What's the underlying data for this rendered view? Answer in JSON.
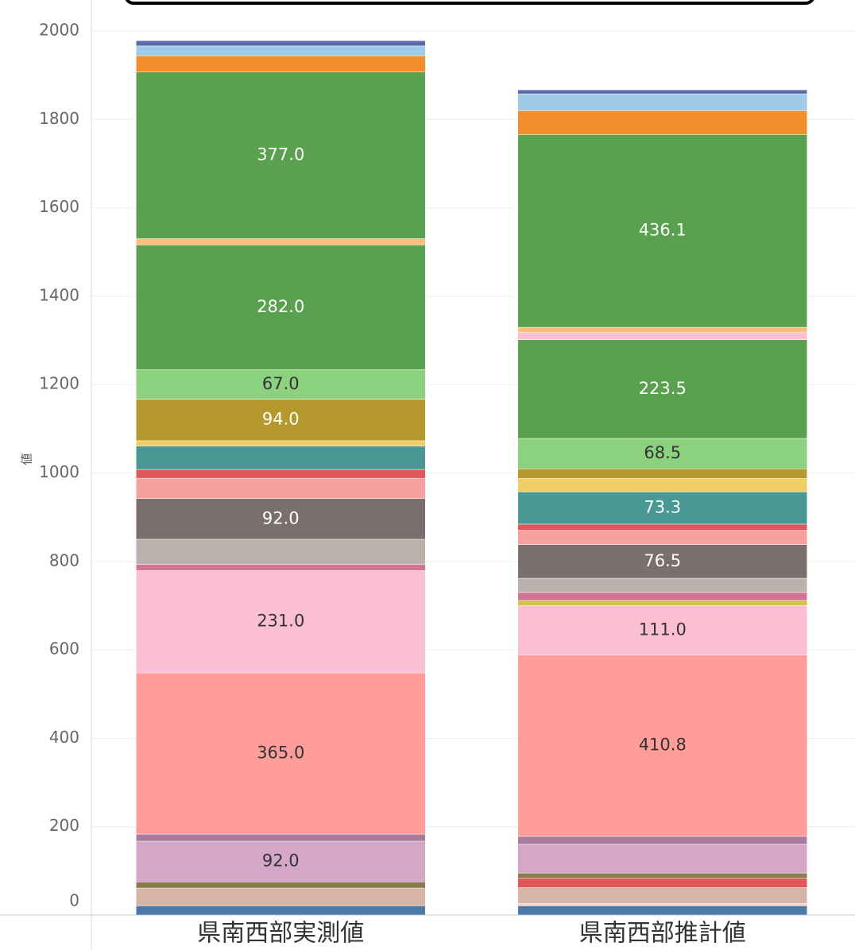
{
  "chart_data": {
    "type": "stacked_bar",
    "y_label": "値",
    "categories": [
      "県南西部実測値",
      "県南西部推計値"
    ],
    "ylim": [
      0,
      2070
    ],
    "yticks": [
      0,
      200,
      400,
      600,
      800,
      1000,
      1200,
      1400,
      1600,
      1800,
      2000
    ],
    "grid": true,
    "series": [
      {
        "color": "#4e79a7",
        "values": [
          21,
          21
        ]
      },
      {
        "color": "#fdd0c8",
        "values": [
          0,
          5
        ]
      },
      {
        "color": "#d7b5a6",
        "values": [
          40,
          36
        ]
      },
      {
        "color": "#e15759",
        "values": [
          0,
          21
        ]
      },
      {
        "color": "#8a7a50",
        "values": [
          14,
          12
        ]
      },
      {
        "color": "#d4a6c8",
        "values": [
          92,
          65
        ],
        "value_labels": [
          "92.0",
          null
        ]
      },
      {
        "color": "#a87c9f",
        "values": [
          16,
          18
        ]
      },
      {
        "color": "#ff9d9a",
        "values": [
          365,
          410.8
        ],
        "value_labels": [
          "365.0",
          "410.8"
        ]
      },
      {
        "color": "#fabfd2",
        "values": [
          231,
          111
        ],
        "value_labels": [
          "231.0",
          "111.0"
        ]
      },
      {
        "color": "#d4c04a",
        "values": [
          0,
          12
        ]
      },
      {
        "color": "#d37295",
        "values": [
          14,
          18
        ]
      },
      {
        "color": "#bab0ac",
        "values": [
          57,
          32
        ]
      },
      {
        "color": "#79706e",
        "values": [
          92,
          76.5
        ],
        "value_labels": [
          "92.0",
          "76.5"
        ]
      },
      {
        "color": "#f7a0a0",
        "values": [
          46,
          32
        ]
      },
      {
        "color": "#e15759",
        "values": [
          20,
          14
        ]
      },
      {
        "color": "#499894",
        "values": [
          53,
          73.3
        ],
        "value_labels": [
          null,
          "73.3"
        ]
      },
      {
        "color": "#f1ce63",
        "values": [
          12,
          30
        ]
      },
      {
        "color": "#b6992d",
        "values": [
          94,
          22
        ],
        "value_labels": [
          "94.0",
          null
        ]
      },
      {
        "color": "#8cd17d",
        "values": [
          67,
          68.5
        ],
        "value_labels": [
          "67.0",
          "68.5"
        ]
      },
      {
        "color": "#59a14f",
        "values": [
          282,
          223.5
        ],
        "value_labels": [
          "282.0",
          "223.5"
        ]
      },
      {
        "color": "#fabfd2",
        "values": [
          0,
          16
        ]
      },
      {
        "color": "#ffbe7d",
        "values": [
          14,
          12
        ]
      },
      {
        "color": "#59a14f",
        "values": [
          377,
          436.1
        ],
        "value_labels": [
          "377.0",
          "436.1"
        ]
      },
      {
        "color": "#f28e2b",
        "values": [
          37,
          54
        ]
      },
      {
        "color": "#a0cbe8",
        "values": [
          22,
          38
        ]
      },
      {
        "color": "#5b6aa8",
        "values": [
          12,
          9
        ]
      }
    ]
  }
}
